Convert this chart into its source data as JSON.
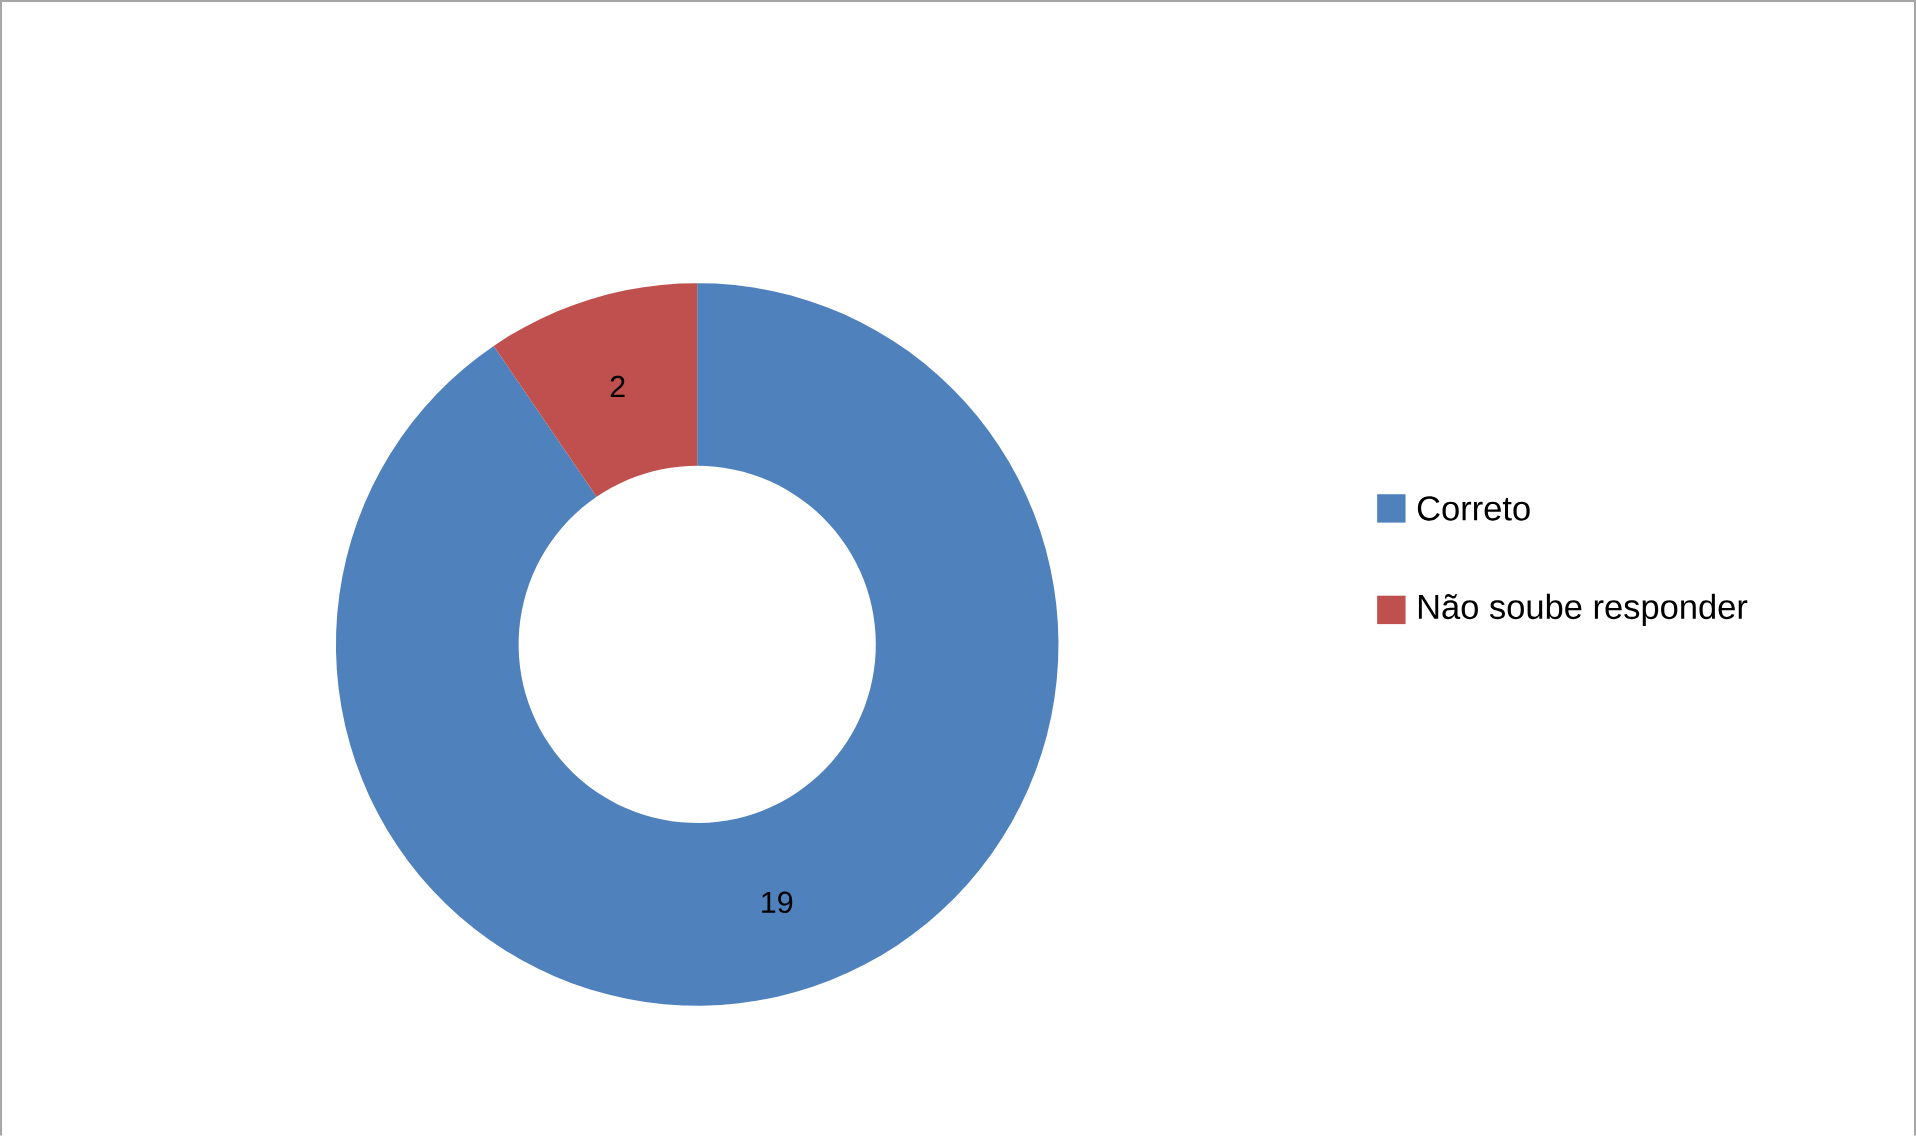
{
  "chart_data": {
    "type": "donut",
    "categories": [
      "Correto",
      "Não soube responder"
    ],
    "values": [
      19,
      2
    ],
    "colors": [
      "#4f81bd",
      "#c0504d"
    ],
    "data_labels": true,
    "legend": "right"
  }
}
